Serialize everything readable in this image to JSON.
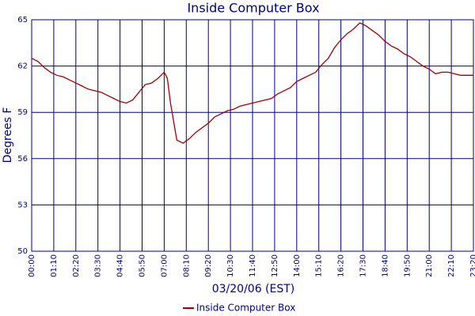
{
  "chart_data": {
    "type": "line",
    "title": "Inside Computer Box",
    "x_label": "03/20/06 (EST)",
    "y_label": "Degrees F",
    "x": [
      "00:00",
      "00:20",
      "00:40",
      "01:00",
      "01:20",
      "01:40",
      "02:00",
      "02:20",
      "02:40",
      "03:00",
      "03:20",
      "03:40",
      "04:00",
      "04:20",
      "04:40",
      "05:00",
      "05:20",
      "05:40",
      "06:00",
      "06:20",
      "06:40",
      "07:00",
      "07:10",
      "07:20",
      "07:40",
      "08:00",
      "08:20",
      "08:40",
      "09:00",
      "09:20",
      "09:40",
      "10:00",
      "10:20",
      "10:40",
      "11:00",
      "11:20",
      "11:40",
      "12:00",
      "12:20",
      "12:40",
      "13:00",
      "13:20",
      "13:40",
      "14:00",
      "14:20",
      "14:40",
      "15:00",
      "15:20",
      "15:40",
      "16:00",
      "16:20",
      "16:40",
      "17:00",
      "17:20",
      "17:40",
      "18:00",
      "18:20",
      "18:40",
      "19:00",
      "19:20",
      "19:40",
      "20:00",
      "20:20",
      "20:40",
      "21:00",
      "21:20",
      "21:40",
      "22:00",
      "22:20",
      "22:40",
      "23:00",
      "23:20"
    ],
    "series": [
      {
        "name": "Inside Computer Box",
        "color": "#a00000",
        "values": [
          62.5,
          62.3,
          61.9,
          61.6,
          61.4,
          61.3,
          61.1,
          60.9,
          60.7,
          60.5,
          60.4,
          60.3,
          60.1,
          59.9,
          59.7,
          59.6,
          59.8,
          60.3,
          60.8,
          60.9,
          61.2,
          61.6,
          61.2,
          59.6,
          57.2,
          57.0,
          57.3,
          57.7,
          58.0,
          58.3,
          58.7,
          58.9,
          59.1,
          59.2,
          59.4,
          59.5,
          59.6,
          59.7,
          59.8,
          59.9,
          60.2,
          60.4,
          60.6,
          61.0,
          61.2,
          61.4,
          61.6,
          62.1,
          62.5,
          63.2,
          63.7,
          64.1,
          64.4,
          64.8,
          64.6,
          64.3,
          64.0,
          63.6,
          63.3,
          63.1,
          62.8,
          62.6,
          62.3,
          62.0,
          61.8,
          61.5,
          61.6,
          61.6,
          61.5,
          61.4,
          61.4,
          61.4
        ]
      }
    ],
    "xlim": [
      "00:00",
      "23:20"
    ],
    "xticks": [
      "00:00",
      "01:10",
      "02:20",
      "03:30",
      "04:40",
      "05:50",
      "07:00",
      "08:10",
      "09:20",
      "10:30",
      "11:40",
      "12:50",
      "14:00",
      "15:10",
      "16:20",
      "17:30",
      "18:40",
      "19:50",
      "21:00",
      "22:10",
      "23:20"
    ],
    "ylim": [
      50,
      65
    ],
    "yticks": [
      50,
      53,
      56,
      59,
      62,
      65
    ],
    "grid": true,
    "legend": "bottom"
  }
}
